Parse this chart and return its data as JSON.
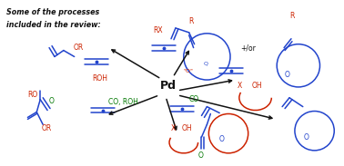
{
  "bg_color": "#ffffff",
  "blue": "#2244cc",
  "red": "#cc2200",
  "green": "#007700",
  "black": "#111111",
  "title_line1": "Some of the processes",
  "title_line2": "included in the review:",
  "pd_label": "Pd",
  "fig_w": 3.78,
  "fig_h": 1.83,
  "dpi": 100
}
